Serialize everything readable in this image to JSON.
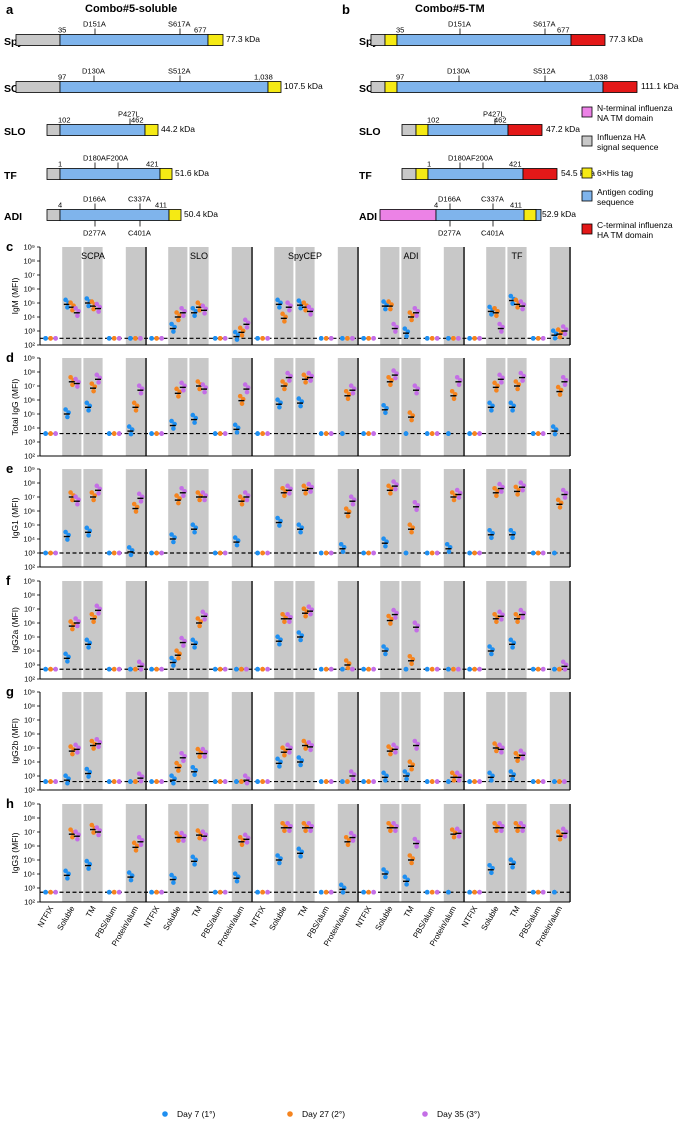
{
  "figure": {
    "panel_letters": [
      "a",
      "b",
      "c",
      "d",
      "e",
      "f",
      "g",
      "h"
    ],
    "panel_a": {
      "title": "Combo#5-soluble",
      "proteins": [
        {
          "name": "SpyCEP",
          "start": "35",
          "end": "677",
          "mutations": [
            "D151A",
            "S617A"
          ],
          "kda": "77.3 kDa"
        },
        {
          "name": "SCPA",
          "start": "97",
          "end": "1,038",
          "mutations": [
            "D130A",
            "S512A"
          ],
          "kda": "107.5 kDa"
        },
        {
          "name": "SLO",
          "start": "102",
          "end": "462",
          "mutations": [
            "P427L"
          ],
          "kda": "44.2 kDa"
        },
        {
          "name": "TF",
          "start": "1",
          "end": "421",
          "mutations": [
            "D180A",
            "F200A"
          ],
          "kda": "51.6 kDa"
        },
        {
          "name": "ADI",
          "start": "4",
          "end": "411",
          "mutations": [
            "D166A",
            "C337A"
          ],
          "mutations_below": [
            "D277A",
            "C401A"
          ],
          "kda": "50.4 kDa"
        }
      ]
    },
    "panel_b": {
      "title": "Combo#5-TM",
      "proteins": [
        {
          "name": "SpyCEP",
          "start": "35",
          "end": "677",
          "mutations": [
            "D151A",
            "S617A"
          ],
          "kda": "77.3 kDa"
        },
        {
          "name": "SCPA",
          "start": "97",
          "end": "1,038",
          "mutations": [
            "D130A",
            "S512A"
          ],
          "kda": "111.1 kDa"
        },
        {
          "name": "SLO",
          "start": "102",
          "end": "462",
          "mutations": [
            "P427L"
          ],
          "kda": "47.2 kDa"
        },
        {
          "name": "TF",
          "start": "1",
          "end": "421",
          "mutations": [
            "D180A",
            "F200A"
          ],
          "kda": "54.5 kDa"
        },
        {
          "name": "ADI",
          "start": "4",
          "end": "411",
          "mutations": [
            "D166A",
            "C337A"
          ],
          "mutations_below": [
            "D277A",
            "C401A"
          ],
          "kda": "52.9 kDa"
        }
      ]
    },
    "domain_legend": [
      {
        "label": "N-terminal influenza NA TM domain",
        "color": "#ec82e6"
      },
      {
        "label": "Influenza HA signal sequence",
        "color": "#c8c8c8"
      },
      {
        "label": "6×His tag",
        "color": "#f5ea14"
      },
      {
        "label": "Antigen coding sequence",
        "color": "#7fb4ec"
      },
      {
        "label": "C-terminal influenza HA TM domain",
        "color": "#e31818"
      }
    ],
    "legend_lines": [
      [
        "N-terminal influenza",
        "NA TM domain"
      ],
      [
        "Influenza HA",
        "signal sequence"
      ],
      [
        "6×His tag"
      ],
      [
        "Antigen coding",
        "sequence"
      ],
      [
        "C-terminal influenza",
        "HA TM domain"
      ]
    ],
    "time_legend": [
      {
        "label": "Day 7 (1°)",
        "color": "#1f8ff0"
      },
      {
        "label": "Day 27 (2°)",
        "color": "#f5841f"
      },
      {
        "label": "Day 35 (3°)",
        "color": "#c46ee6"
      }
    ],
    "colors": {
      "shade": "#c8c8c8",
      "day7": "#1f8ff0",
      "day27": "#f5841f",
      "day35": "#c46ee6",
      "sig": "#c8c8c8",
      "his": "#f5ea14",
      "antigen": "#7fb4ec",
      "ctm": "#e31818",
      "ntm": "#ec82e6"
    }
  },
  "chart_data": {
    "type": "scatter",
    "antigens": [
      "SCPA",
      "SLO",
      "SpyCEP",
      "ADI",
      "TF"
    ],
    "categories": [
      "NTFIX",
      "Soluble",
      "TM",
      "PBS/alum",
      "Protein/alum"
    ],
    "series_names": [
      "Day 7 (1°)",
      "Day 27 (2°)",
      "Day 35 (3°)"
    ],
    "y_scale": "log10",
    "ylim": [
      100,
      1000000000
    ],
    "y_tick_labels": [
      "10²",
      "10³",
      "10⁴",
      "10⁵",
      "10⁶",
      "10⁷",
      "10⁸",
      "10⁹"
    ],
    "panels": [
      {
        "id": "c",
        "ylabel": "IgM (MFI)",
        "baseline": 300,
        "values": {
          "SCPA": {
            "Soluble": [
              80000,
              50000,
              20000
            ],
            "TM": [
              100000,
              60000,
              40000
            ]
          },
          "SLO": {
            "Soluble": [
              1500,
              10000,
              20000
            ],
            "TM": [
              20000,
              50000,
              30000
            ],
            "Protein/alum": [
              400,
              800,
              3000
            ]
          },
          "SpyCEP": {
            "Soluble": [
              80000,
              8000,
              50000
            ],
            "TM": [
              70000,
              50000,
              25000
            ]
          },
          "ADI": {
            "Soluble": [
              60000,
              60000,
              1500
            ],
            "TM": [
              700,
              10000,
              20000
            ]
          },
          "TF": {
            "Soluble": [
              25000,
              20000,
              1500
            ],
            "TM": [
              150000,
              80000,
              60000
            ],
            "Protein/alum": [
              500,
              600,
              1000
            ]
          }
        }
      },
      {
        "id": "d",
        "ylabel": "Total IgG (MFI)",
        "baseline": 4000,
        "values": {
          "SCPA": {
            "Soluble": [
              100000,
              20000000,
              15000000
            ],
            "TM": [
              300000,
              7000000,
              30000000
            ],
            "Protein/alum": [
              6000,
              300000,
              5000000
            ]
          },
          "SLO": {
            "Soluble": [
              15000,
              3000000,
              8000000
            ],
            "TM": [
              40000,
              10000000,
              6000000
            ],
            "Protein/alum": [
              8000,
              900000,
              6000000
            ]
          },
          "SpyCEP": {
            "Soluble": [
              500000,
              10000000,
              40000000
            ],
            "TM": [
              600000,
              30000000,
              40000000
            ],
            "Protein/alum": [
              4000,
              2000000,
              5000000
            ]
          },
          "ADI": {
            "Soluble": [
              200000,
              20000000,
              60000000
            ],
            "TM": [
              4000,
              60000,
              5000000
            ],
            "Protein/alum": [
              4000,
              2000000,
              20000000
            ]
          },
          "TF": {
            "Soluble": [
              300000,
              8000000,
              30000000
            ],
            "TM": [
              300000,
              10000000,
              40000000
            ],
            "Protein/alum": [
              6000,
              4000000,
              20000000
            ]
          }
        }
      },
      {
        "id": "e",
        "ylabel": "IgG1 (MFI)",
        "baseline": 1000,
        "values": {
          "SCPA": {
            "Soluble": [
              15000,
              10000000,
              5000000
            ],
            "TM": [
              30000,
              10000000,
              30000000
            ],
            "Protein/alum": [
              1200,
              1500000,
              8000000
            ]
          },
          "SLO": {
            "Soluble": [
              10000,
              6000000,
              20000000
            ],
            "TM": [
              50000,
              10000000,
              10000000
            ],
            "Protein/alum": [
              6000,
              5000000,
              10000000
            ]
          },
          "SpyCEP": {
            "Soluble": [
              150000,
              20000000,
              30000000
            ],
            "TM": [
              50000,
              30000000,
              40000000
            ],
            "Protein/alum": [
              2000,
              700000,
              5000000
            ]
          },
          "ADI": {
            "Soluble": [
              5000,
              30000000,
              60000000
            ],
            "TM": [
              1000,
              50000,
              2000000
            ],
            "Protein/alum": [
              2000,
              10000000,
              15000000
            ]
          },
          "TF": {
            "Soluble": [
              20000,
              20000000,
              40000000
            ],
            "TM": [
              20000,
              25000000,
              50000000
            ],
            "Protein/alum": [
              1000,
              3000000,
              15000000
            ]
          }
        }
      },
      {
        "id": "f",
        "ylabel": "IgG2a (MFI)",
        "baseline": 500,
        "values": {
          "SCPA": {
            "Soluble": [
              3000,
              600000,
              1000000
            ],
            "TM": [
              30000,
              2000000,
              8000000
            ],
            "Protein/alum": [
              500,
              500,
              800
            ]
          },
          "SLO": {
            "Soluble": [
              1500,
              5000,
              40000
            ],
            "TM": [
              30000,
              1000000,
              3000000
            ],
            "Protein/alum": [
              500,
              500,
              500
            ]
          },
          "SpyCEP": {
            "Soluble": [
              50000,
              2000000,
              2000000
            ],
            "TM": [
              100000,
              5000000,
              7000000
            ],
            "Protein/alum": [
              500,
              1000,
              500
            ]
          },
          "ADI": {
            "Soluble": [
              10000,
              1500000,
              4000000
            ],
            "TM": [
              500,
              2000,
              500000
            ],
            "Protein/alum": [
              500,
              500,
              500
            ]
          },
          "TF": {
            "Soluble": [
              10000,
              2000000,
              3000000
            ],
            "TM": [
              30000,
              2000000,
              4000000
            ],
            "Protein/alum": [
              500,
              500,
              800
            ]
          }
        }
      },
      {
        "id": "g",
        "ylabel": "IgG2b (MFI)",
        "baseline": 400,
        "values": {
          "SCPA": {
            "Soluble": [
              500,
              60000,
              80000
            ],
            "TM": [
              1500,
              150000,
              200000
            ],
            "Protein/alum": [
              400,
              400,
              700
            ]
          },
          "SLO": {
            "Soluble": [
              500,
              4000,
              20000
            ],
            "TM": [
              2000,
              40000,
              40000
            ],
            "Protein/alum": [
              400,
              400,
              500
            ]
          },
          "SpyCEP": {
            "Soluble": [
              8000,
              50000,
              80000
            ],
            "TM": [
              10000,
              150000,
              120000
            ],
            "Protein/alum": [
              400,
              400,
              1000
            ]
          },
          "ADI": {
            "Soluble": [
              800,
              60000,
              80000
            ],
            "TM": [
              1000,
              5000,
              150000
            ],
            "Protein/alum": [
              400,
              800,
              800
            ]
          },
          "TF": {
            "Soluble": [
              800,
              100000,
              80000
            ],
            "TM": [
              1000,
              20000,
              30000
            ],
            "Protein/alum": [
              400,
              400,
              400
            ]
          }
        }
      },
      {
        "id": "h",
        "ylabel": "IgG3 (MFI)",
        "baseline": 500,
        "values": {
          "SCPA": {
            "Soluble": [
              8000,
              7000000,
              5000000
            ],
            "TM": [
              40000,
              15000000,
              10000000
            ],
            "Protein/alum": [
              6000,
              800000,
              2000000
            ]
          },
          "SLO": {
            "Soluble": [
              4000,
              4000000,
              4000000
            ],
            "TM": [
              80000,
              6000000,
              5000000
            ],
            "Protein/alum": [
              5000,
              2000000,
              3000000
            ]
          },
          "SpyCEP": {
            "Soluble": [
              100000,
              20000000,
              20000000
            ],
            "TM": [
              300000,
              20000000,
              20000000
            ],
            "Protein/alum": [
              800,
              2000000,
              4000000
            ]
          },
          "ADI": {
            "Soluble": [
              10000,
              20000000,
              20000000
            ],
            "TM": [
              3000,
              100000,
              1500000
            ],
            "Protein/alum": [
              500,
              7000000,
              8000000
            ]
          },
          "TF": {
            "Soluble": [
              20000,
              20000000,
              20000000
            ],
            "TM": [
              50000,
              20000000,
              20000000
            ],
            "Protein/alum": [
              500,
              5000000,
              8000000
            ]
          }
        }
      }
    ]
  }
}
